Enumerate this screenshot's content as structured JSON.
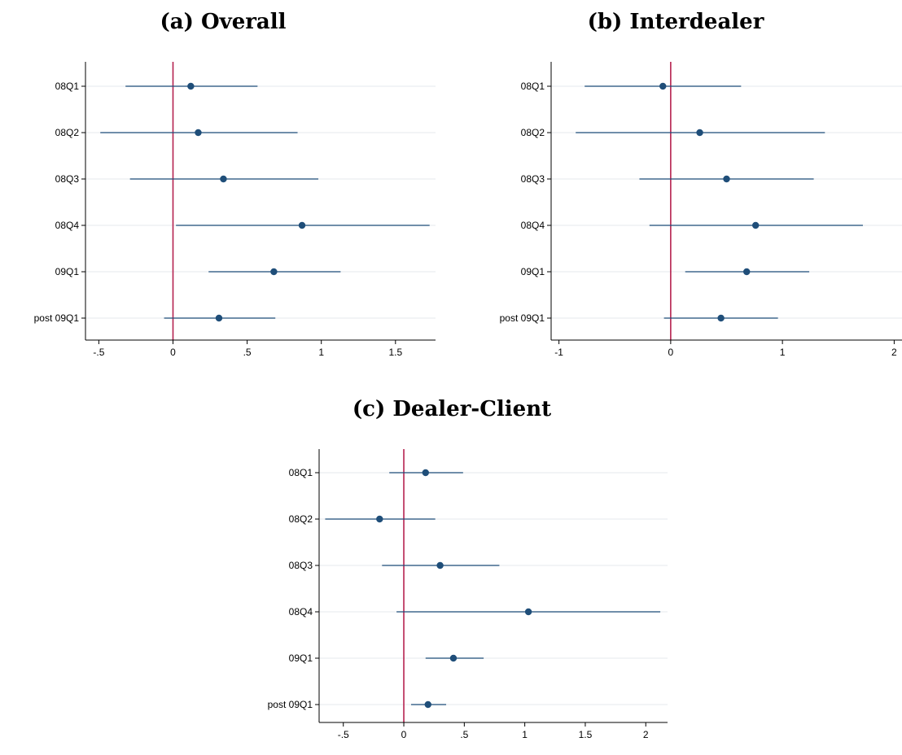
{
  "colors": {
    "series": "#1f4e79",
    "ref_line": "#b5224f",
    "grid": "#e9edf1",
    "axis": "#000000"
  },
  "panels": [
    {
      "title": "(a) Overall"
    },
    {
      "title": "(b) Interdealer"
    },
    {
      "title": "(c) Dealer-Client"
    }
  ],
  "chart_data": [
    {
      "type": "scatter",
      "subtype": "coefficient-plot",
      "title": "(a) Overall",
      "categories": [
        "08Q1",
        "08Q2",
        "08Q3",
        "08Q4",
        "09Q1",
        "post 09Q1"
      ],
      "estimates": [
        0.12,
        0.17,
        0.34,
        0.87,
        0.68,
        0.31
      ],
      "ci_low": [
        -0.32,
        -0.49,
        -0.29,
        0.02,
        0.24,
        -0.06
      ],
      "ci_high": [
        0.57,
        0.84,
        0.98,
        1.73,
        1.13,
        0.69
      ],
      "reference_line": 0,
      "xticks": [
        -0.5,
        0,
        0.5,
        1,
        1.5
      ],
      "xtick_labels": [
        "-.5",
        "0",
        ".5",
        "1",
        "1.5"
      ],
      "xlim": [
        -0.59,
        1.77
      ],
      "grid": true,
      "xlabel": "",
      "ylabel": ""
    },
    {
      "type": "scatter",
      "subtype": "coefficient-plot",
      "title": "(b) Interdealer",
      "categories": [
        "08Q1",
        "08Q2",
        "08Q3",
        "08Q4",
        "09Q1",
        "post 09Q1"
      ],
      "estimates": [
        -0.07,
        0.26,
        0.5,
        0.76,
        0.68,
        0.45
      ],
      "ci_low": [
        -0.77,
        -0.85,
        -0.28,
        -0.19,
        0.13,
        -0.06
      ],
      "ci_high": [
        0.63,
        1.38,
        1.28,
        1.72,
        1.24,
        0.96
      ],
      "reference_line": 0,
      "xticks": [
        -1,
        0,
        1,
        2
      ],
      "xtick_labels": [
        "-1",
        "0",
        "1",
        "2"
      ],
      "xlim": [
        -1.07,
        2.07
      ],
      "grid": true,
      "xlabel": "",
      "ylabel": ""
    },
    {
      "type": "scatter",
      "subtype": "coefficient-plot",
      "title": "(c) Dealer-Client",
      "categories": [
        "08Q1",
        "08Q2",
        "08Q3",
        "08Q4",
        "09Q1",
        "post 09Q1"
      ],
      "estimates": [
        0.18,
        -0.2,
        0.3,
        1.03,
        0.41,
        0.2
      ],
      "ci_low": [
        -0.12,
        -0.65,
        -0.18,
        -0.06,
        0.18,
        0.06
      ],
      "ci_high": [
        0.49,
        0.26,
        0.79,
        2.12,
        0.66,
        0.35
      ],
      "reference_line": 0,
      "xticks": [
        -0.5,
        0,
        0.5,
        1,
        1.5,
        2
      ],
      "xtick_labels": [
        "-.5",
        "0",
        ".5",
        "1",
        "1.5",
        "2"
      ],
      "xlim": [
        -0.7,
        2.18
      ],
      "grid": true,
      "xlabel": "",
      "ylabel": ""
    }
  ]
}
